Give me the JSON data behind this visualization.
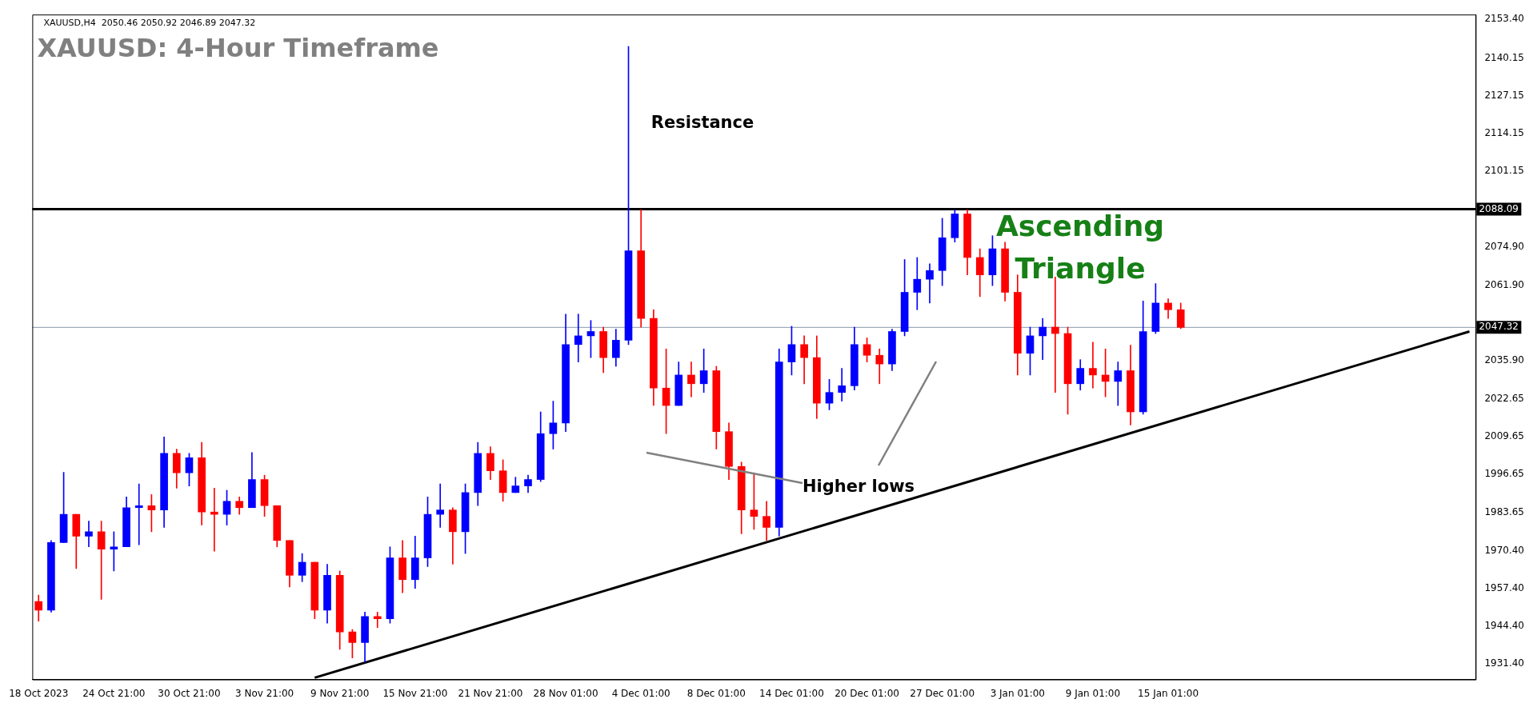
{
  "chart_data": {
    "type": "candlestick",
    "title": "XAUUSD: 4-Hour Timeframe",
    "subtitle": "XAUUSD,H4  2050.46 2050.92 2046.89 2047.32",
    "annotations": [
      "Resistance",
      "Ascending Triangle",
      "Higher lows"
    ],
    "categories": [
      "18 Oct 2023",
      null,
      null,
      null,
      null,
      null,
      "24 Oct 21:00",
      null,
      null,
      null,
      null,
      null,
      "30 Oct 21:00",
      null,
      null,
      null,
      null,
      null,
      "3 Nov 21:00",
      null,
      null,
      null,
      null,
      null,
      "9 Nov 21:00",
      null,
      null,
      null,
      null,
      null,
      "15 Nov 21:00",
      null,
      null,
      null,
      null,
      null,
      "21 Nov 21:00",
      null,
      null,
      null,
      null,
      null,
      "28 Nov 01:00",
      null,
      null,
      null,
      null,
      null,
      "4 Dec 01:00",
      null,
      null,
      null,
      null,
      null,
      "8 Dec 01:00",
      null,
      null,
      null,
      null,
      null,
      "14 Dec 01:00",
      null,
      null,
      null,
      null,
      null,
      "20 Dec 01:00",
      null,
      null,
      null,
      null,
      null,
      "27 Dec 01:00",
      null,
      null,
      null,
      null,
      null,
      "3 Jan 01:00",
      null,
      null,
      null,
      null,
      null,
      "9 Jan 01:00",
      null,
      null,
      null,
      null,
      null,
      "15 Jan 01:00",
      null,
      null,
      null,
      null,
      null,
      null,
      null,
      null,
      null,
      null,
      null,
      null,
      null,
      null,
      null,
      null,
      null,
      null,
      null,
      null,
      null,
      null,
      null,
      null
    ],
    "ohlc": [
      [
        1952.9,
        1955.1,
        1946.1,
        1949.9
      ],
      [
        1949.9,
        1973.9,
        1949.2,
        1973.2
      ],
      [
        1973.2,
        1997.4,
        1973.2,
        1982.9
      ],
      [
        1982.9,
        1982.9,
        1964.2,
        1975.4
      ],
      [
        1975.4,
        1980.6,
        1971.7,
        1976.9
      ],
      [
        1976.9,
        1980.6,
        1953.6,
        1970.9
      ],
      [
        1970.9,
        1976.9,
        1963.4,
        1971.7
      ],
      [
        1971.7,
        1988.9,
        1971.7,
        1985.2
      ],
      [
        1985.2,
        1993.4,
        1972.4,
        1985.9
      ],
      [
        1985.9,
        1989.7,
        1976.9,
        1984.4
      ],
      [
        1984.4,
        2009.6,
        1978.4,
        2003.9
      ],
      [
        2003.9,
        2005.4,
        1991.9,
        1997.2
      ],
      [
        1997.2,
        2003.9,
        1992.7,
        2002.4
      ],
      [
        2002.4,
        2007.7,
        1979.2,
        1983.7
      ],
      [
        1983.7,
        1991.9,
        1970.2,
        1982.9
      ],
      [
        1982.9,
        1991.2,
        1979.2,
        1987.4
      ],
      [
        1987.4,
        1988.9,
        1982.9,
        1985.2
      ],
      [
        1985.2,
        2004.2,
        1985.2,
        1994.9
      ],
      [
        1994.9,
        1996.4,
        1982.2,
        1985.9
      ],
      [
        1985.9,
        1985.9,
        1971.7,
        1973.9
      ],
      [
        1973.9,
        1973.9,
        1957.9,
        1961.9
      ],
      [
        1961.9,
        1969.4,
        1959.7,
        1966.4
      ],
      [
        1966.4,
        1966.4,
        1946.9,
        1949.9
      ],
      [
        1949.9,
        1965.7,
        1945.4,
        1961.9
      ],
      [
        1961.9,
        1963.4,
        1936.4,
        1942.4
      ],
      [
        1942.4,
        1943.2,
        1933.4,
        1938.7
      ],
      [
        1938.7,
        1949.2,
        1931.9,
        1947.7
      ],
      [
        1947.7,
        1949.2,
        1943.9,
        1946.9
      ],
      [
        1946.9,
        1971.7,
        1945.4,
        1967.9
      ],
      [
        1967.9,
        1973.9,
        1955.9,
        1960.4
      ],
      [
        1960.4,
        1975.4,
        1957.4,
        1967.9
      ],
      [
        1967.9,
        1988.9,
        1964.9,
        1982.9
      ],
      [
        1982.9,
        1993.4,
        1978.4,
        1984.4
      ],
      [
        1984.4,
        1985.2,
        1965.7,
        1976.9
      ],
      [
        1976.9,
        1993.4,
        1969.4,
        1990.4
      ],
      [
        1990.4,
        2007.7,
        1985.9,
        2003.9
      ],
      [
        2003.9,
        2006.2,
        1994.9,
        1997.9
      ],
      [
        1997.9,
        2001.7,
        1987.4,
        1990.4
      ],
      [
        1990.4,
        1995.7,
        1990.4,
        1992.7
      ],
      [
        1992.7,
        1996.4,
        1990.4,
        1994.9
      ],
      [
        1994.9,
        2018.2,
        1994.2,
        2010.7
      ],
      [
        2010.7,
        2021.9,
        2005.4,
        2014.4
      ],
      [
        2014.4,
        2051.9,
        2011.4,
        2041.4
      ],
      [
        2041.4,
        2051.9,
        2035.4,
        2044.4
      ],
      [
        2044.4,
        2049.7,
        2036.9,
        2045.9
      ],
      [
        2045.9,
        2047.4,
        2031.7,
        2036.9
      ],
      [
        2036.9,
        2046.7,
        2033.9,
        2042.9
      ],
      [
        2042.9,
        2144.1,
        2041.4,
        2073.7
      ],
      [
        2073.7,
        2087.9,
        2047.4,
        2050.4
      ],
      [
        2050.4,
        2053.4,
        2020.4,
        2026.4
      ],
      [
        2026.4,
        2039.9,
        2010.7,
        2020.4
      ],
      [
        2020.4,
        2035.4,
        2020.4,
        2030.9
      ],
      [
        2030.9,
        2035.4,
        2023.4,
        2027.9
      ],
      [
        2027.9,
        2039.9,
        2024.9,
        2032.4
      ],
      [
        2032.4,
        2033.9,
        2005.4,
        2011.4
      ],
      [
        2011.4,
        2014.4,
        1994.9,
        1999.4
      ],
      [
        1999.4,
        2000.9,
        1976.2,
        1984.4
      ],
      [
        1984.4,
        1997.2,
        1977.7,
        1982.2
      ],
      [
        1982.2,
        1987.4,
        1973.9,
        1978.4
      ],
      [
        1978.4,
        2039.9,
        1975.4,
        2035.4
      ],
      [
        2035.4,
        2047.7,
        2030.9,
        2041.4
      ],
      [
        2041.4,
        2044.4,
        2027.9,
        2036.9
      ],
      [
        2036.9,
        2044.4,
        2015.9,
        2021.2
      ],
      [
        2021.2,
        2029.4,
        2018.9,
        2024.9
      ],
      [
        2024.9,
        2033.2,
        2021.9,
        2027.2
      ],
      [
        2027.2,
        2047.4,
        2025.7,
        2041.4
      ],
      [
        2041.4,
        2043.7,
        2035.4,
        2037.7
      ],
      [
        2037.7,
        2039.9,
        2027.9,
        2034.7
      ],
      [
        2034.7,
        2046.7,
        2032.4,
        2045.9
      ],
      [
        2045.9,
        2070.7,
        2044.4,
        2059.4
      ],
      [
        2059.4,
        2071.4,
        2053.4,
        2063.9
      ],
      [
        2063.9,
        2069.2,
        2055.7,
        2066.9
      ],
      [
        2066.9,
        2084.9,
        2061.7,
        2078.2
      ],
      [
        2078.2,
        2087.9,
        2076.7,
        2086.4
      ],
      [
        2086.4,
        2087.9,
        2065.4,
        2071.4
      ],
      [
        2071.4,
        2074.4,
        2057.9,
        2065.4
      ],
      [
        2065.4,
        2078.9,
        2061.7,
        2074.4
      ],
      [
        2074.4,
        2076.7,
        2056.4,
        2059.4
      ],
      [
        2059.4,
        2065.4,
        2030.9,
        2038.4
      ],
      [
        2038.4,
        2047.4,
        2030.9,
        2044.4
      ],
      [
        2044.4,
        2050.4,
        2036.2,
        2047.4
      ],
      [
        2047.4,
        2064.7,
        2024.9,
        2045.2
      ],
      [
        2045.2,
        2047.4,
        2017.4,
        2027.9
      ],
      [
        2027.9,
        2036.2,
        2025.7,
        2033.2
      ],
      [
        2033.2,
        2042.2,
        2026.4,
        2030.9
      ],
      [
        2030.9,
        2039.9,
        2023.4,
        2028.7
      ],
      [
        2028.7,
        2035.4,
        2020.4,
        2032.4
      ],
      [
        2032.4,
        2041.2,
        2013.7,
        2018.2
      ],
      [
        2018.2,
        2056.4,
        2017.4,
        2045.9
      ],
      [
        2045.9,
        2062.4,
        2045.2,
        2055.7
      ],
      [
        2055.7,
        2057.2,
        2050.4,
        2053.4
      ],
      [
        2053.4,
        2055.7,
        2046.89,
        2047.32
      ],
      null,
      null,
      null,
      null,
      null,
      null,
      null,
      null,
      null,
      null,
      null,
      null,
      null,
      null,
      null,
      null,
      null,
      null,
      null,
      null,
      null,
      null,
      null
    ],
    "colors": [
      "#ff0000",
      "#0000ff",
      "#0000ff",
      "#ff0000",
      "#0000ff",
      "#ff0000",
      "#0000ff",
      "#0000ff",
      "#0000ff",
      "#ff0000",
      "#0000ff",
      "#ff0000",
      "#0000ff",
      "#ff0000",
      "#ff0000",
      "#0000ff",
      "#ff0000",
      "#0000ff",
      "#ff0000",
      "#ff0000",
      "#ff0000",
      "#0000ff",
      "#ff0000",
      "#0000ff",
      "#ff0000",
      "#ff0000",
      "#0000ff",
      "#ff0000",
      "#0000ff",
      "#ff0000",
      "#0000ff",
      "#0000ff",
      "#0000ff",
      "#ff0000",
      "#0000ff",
      "#0000ff",
      "#ff0000",
      "#ff0000",
      "#0000ff",
      "#0000ff",
      "#0000ff",
      "#0000ff",
      "#0000ff",
      "#0000ff",
      "#0000ff",
      "#ff0000",
      "#0000ff",
      "#0000ff",
      "#ff0000",
      "#ff0000",
      "#ff0000",
      "#0000ff",
      "#ff0000",
      "#0000ff",
      "#ff0000",
      "#ff0000",
      "#ff0000",
      "#ff0000",
      "#ff0000",
      "#0000ff",
      "#0000ff",
      "#ff0000",
      "#ff0000",
      "#0000ff",
      "#0000ff",
      "#0000ff",
      "#ff0000",
      "#ff0000",
      "#0000ff",
      "#0000ff",
      "#0000ff",
      "#0000ff",
      "#0000ff",
      "#0000ff",
      "#ff0000",
      "#ff0000",
      "#0000ff",
      "#ff0000",
      "#ff0000",
      "#0000ff",
      "#0000ff",
      "#ff0000",
      "#ff0000",
      "#0000ff",
      "#ff0000",
      "#ff0000",
      "#0000ff",
      "#ff0000",
      "#0000ff",
      "#0000ff",
      "#ff0000",
      "#ff0000",
      null,
      null,
      null,
      null,
      null,
      null,
      null,
      null,
      null,
      null,
      null,
      null,
      null,
      null,
      null,
      null,
      null,
      null,
      null,
      null,
      null,
      null,
      null
    ],
    "series": [
      {
        "type": "line",
        "color": "#000000",
        "values": [
          null,
          null,
          null,
          null,
          null,
          null,
          null,
          null,
          null,
          null,
          null,
          null,
          null,
          null,
          null,
          null,
          null,
          null,
          null,
          null,
          null,
          null,
          1926.6,
          null,
          null,
          null,
          null,
          null,
          null,
          null,
          null,
          null,
          null,
          null,
          null,
          null,
          null,
          null,
          null,
          null,
          null,
          null,
          null,
          null,
          null,
          null,
          null,
          null,
          null,
          null,
          null,
          null,
          null,
          null,
          null,
          null,
          null,
          null,
          null,
          null,
          null,
          null,
          null,
          null,
          null,
          null,
          null,
          null,
          null,
          null,
          null,
          null,
          null,
          null,
          null,
          null,
          null,
          null,
          null,
          null,
          null,
          null,
          null,
          null,
          null,
          null,
          null,
          null,
          null,
          null,
          null,
          null,
          null,
          null,
          null,
          null,
          null,
          null,
          null,
          null,
          null,
          null,
          null,
          null,
          null,
          null,
          null,
          null,
          null,
          null,
          null,
          null,
          null,
          null,
          2045.9
        ]
      }
    ],
    "ref_lines": [
      {
        "axis": "y",
        "value": 2088.09,
        "label": "2088.09",
        "color": "#000000"
      },
      {
        "axis": "y",
        "value": 2047.32,
        "label": "2047.32",
        "color": "#8899aa"
      }
    ],
    "ylim": [
      1926.0,
      2155.1
    ],
    "yticks": [
      {
        "value": 2153.4,
        "label": "2153.40"
      },
      {
        "value": 2140.15,
        "label": "2140.15"
      },
      {
        "value": 2127.15,
        "label": "2127.15"
      },
      {
        "value": 2114.15,
        "label": "2114.15"
      },
      {
        "value": 2101.15,
        "label": "2101.15"
      },
      {
        "value": 2074.9,
        "label": "2074.90"
      },
      {
        "value": 2061.9,
        "label": "2061.90"
      },
      {
        "value": 2035.9,
        "label": "2035.90"
      },
      {
        "value": 2022.65,
        "label": "2022.65"
      },
      {
        "value": 2009.65,
        "label": "2009.65"
      },
      {
        "value": 1996.65,
        "label": "1996.65"
      },
      {
        "value": 1983.65,
        "label": "1983.65"
      },
      {
        "value": 1970.4,
        "label": "1970.40"
      },
      {
        "value": 1957.4,
        "label": "1957.40"
      },
      {
        "value": 1944.4,
        "label": "1944.40"
      },
      {
        "value": 1931.4,
        "label": "1931.40"
      }
    ],
    "grid": false,
    "legend": false,
    "marker": "none"
  }
}
